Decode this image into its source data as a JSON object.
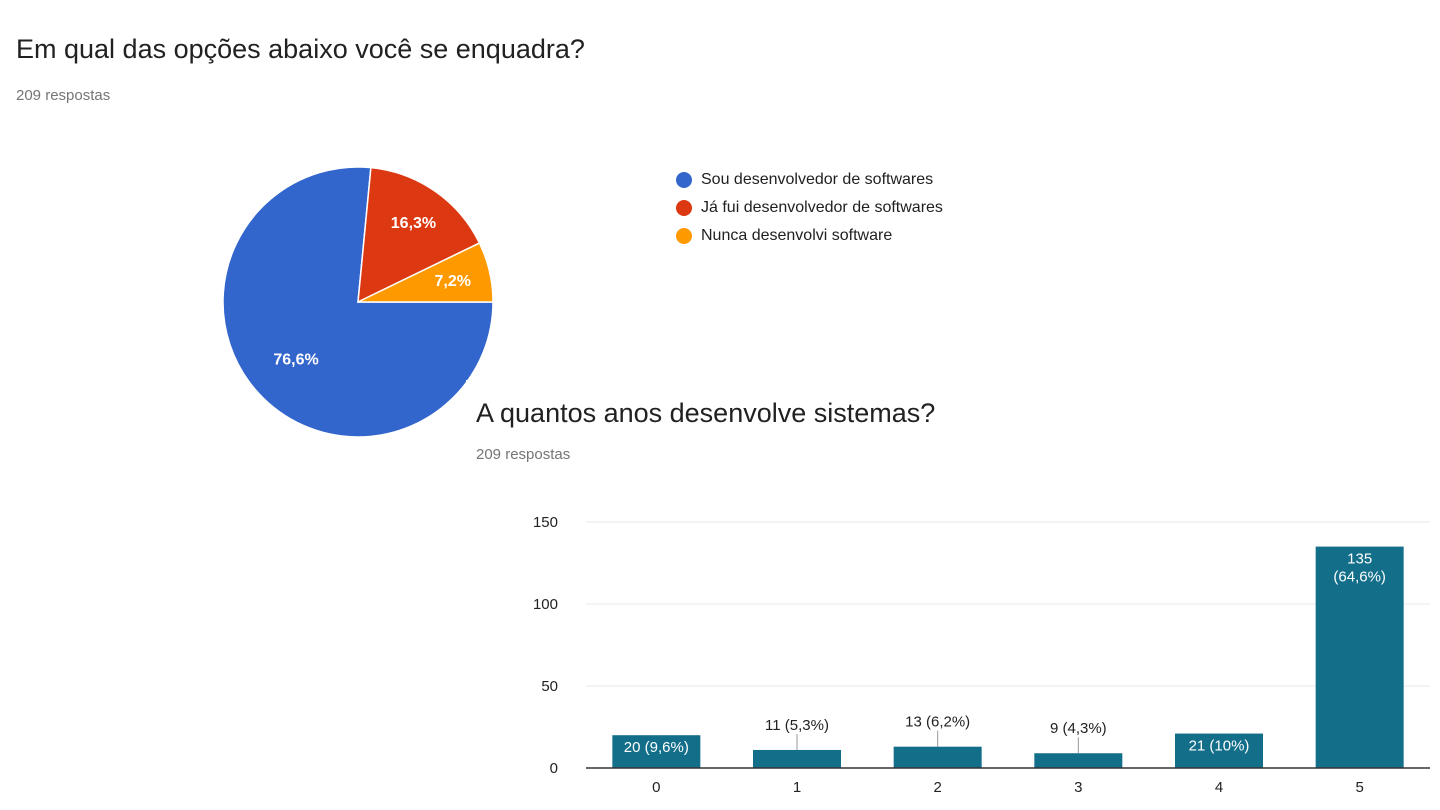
{
  "question1": {
    "title": "Em qual das opções abaixo você se enquadra?",
    "responses": "209 respostas"
  },
  "question2": {
    "title": "A quantos anos desenvolve sistemas?",
    "responses": "209 respostas"
  },
  "chart_data": [
    {
      "type": "pie",
      "slices": [
        {
          "label": "Sou desenvolvedor de softwares",
          "value": 76.6,
          "display": "76,6%",
          "color": "#3366cc"
        },
        {
          "label": "Já fui desenvolvedor de softwares",
          "value": 16.3,
          "display": "16,3%",
          "color": "#dc3912"
        },
        {
          "label": "Nunca desenvolvi software",
          "value": 7.2,
          "display": "7,2%",
          "color": "#ff9900"
        }
      ],
      "legend_position": "right"
    },
    {
      "type": "bar",
      "categories": [
        "0",
        "1",
        "2",
        "3",
        "4",
        "5"
      ],
      "values": [
        20,
        11,
        13,
        9,
        21,
        135
      ],
      "data_labels": [
        "20 (9,6%)",
        "11 (5,3%)",
        "13 (6,2%)",
        "9 (4,3%)",
        "21 (10%)",
        "135 (64,6%)"
      ],
      "ylim": [
        0,
        150
      ],
      "yticks": [
        0,
        50,
        100,
        150
      ],
      "bar_color": "#136e8a",
      "grid": true
    }
  ]
}
